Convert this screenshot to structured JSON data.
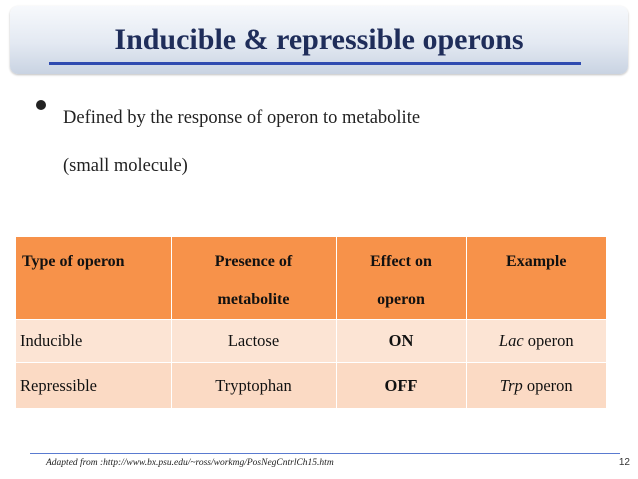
{
  "slide": {
    "title": "Inducible & repressible operons",
    "bullet_line1": "Defined by the response of operon to metabolite",
    "bullet_line2": "(small molecule)"
  },
  "table": {
    "headers": {
      "type": "Type of operon",
      "presence_line1": "Presence of",
      "presence_line2": "metabolite",
      "effect_line1": "Effect on",
      "effect_line2": "operon",
      "example": "Example"
    },
    "rows": [
      {
        "type": "Inducible",
        "metabolite": "Lactose",
        "effect": "ON",
        "example_italic": "Lac",
        "example_rest": " operon"
      },
      {
        "type": "Repressible",
        "metabolite": "Tryptophan",
        "effect": "OFF",
        "example_italic": "Trp",
        "example_rest": " operon"
      }
    ]
  },
  "footer": {
    "source": "Adapted from :http://www.bx.psu.edu/~ross/workmg/PosNegCntrlCh15.htm",
    "page_number": "12"
  },
  "colors": {
    "header_fill": "#f7924a",
    "row1_fill": "#fce4d4",
    "row2_fill": "#fbdac4",
    "on": "#8ac14a",
    "off": "#e01e1e",
    "title": "#1f2d5a"
  }
}
